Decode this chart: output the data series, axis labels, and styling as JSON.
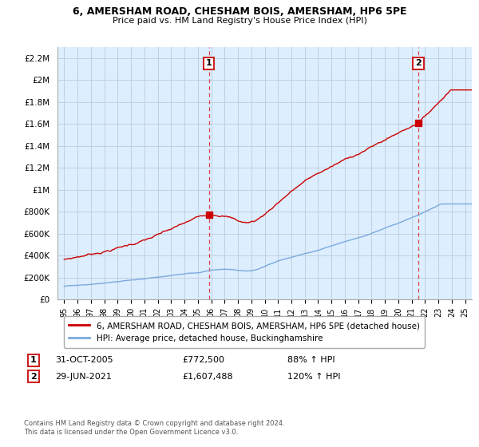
{
  "title1": "6, AMERSHAM ROAD, CHESHAM BOIS, AMERSHAM, HP6 5PE",
  "title2": "Price paid vs. HM Land Registry's House Price Index (HPI)",
  "xlim": [
    1994.5,
    2025.5
  ],
  "ylim": [
    0,
    2300000
  ],
  "yticks": [
    0,
    200000,
    400000,
    600000,
    800000,
    1000000,
    1200000,
    1400000,
    1600000,
    1800000,
    2000000,
    2200000
  ],
  "ytick_labels": [
    "£0",
    "£200K",
    "£400K",
    "£600K",
    "£800K",
    "£1M",
    "£1.2M",
    "£1.4M",
    "£1.6M",
    "£1.8M",
    "£2M",
    "£2.2M"
  ],
  "xticks": [
    1995,
    1996,
    1997,
    1998,
    1999,
    2000,
    2001,
    2002,
    2003,
    2004,
    2005,
    2006,
    2007,
    2008,
    2009,
    2010,
    2011,
    2012,
    2013,
    2014,
    2015,
    2016,
    2017,
    2018,
    2019,
    2020,
    2021,
    2022,
    2023,
    2024,
    2025
  ],
  "sale1_x": 2005.83,
  "sale1_y": 772500,
  "sale1_label": "1",
  "sale1_date": "31-OCT-2005",
  "sale1_price": "£772,500",
  "sale1_hpi": "88% ↑ HPI",
  "sale2_x": 2021.49,
  "sale2_y": 1607488,
  "sale2_label": "2",
  "sale2_date": "29-JUN-2021",
  "sale2_price": "£1,607,488",
  "sale2_hpi": "120% ↑ HPI",
  "legend_line1": "6, AMERSHAM ROAD, CHESHAM BOIS, AMERSHAM, HP6 5PE (detached house)",
  "legend_line2": "HPI: Average price, detached house, Buckinghamshire",
  "footer": "Contains HM Land Registry data © Crown copyright and database right 2024.\nThis data is licensed under the Open Government Licence v3.0.",
  "line_color_red": "#cc0000",
  "line_color_blue": "#7aaadd",
  "vline_color": "#dd4444",
  "bg_plot": "#ddeeff",
  "bg_color": "#ffffff",
  "grid_color": "#c0d0e0"
}
